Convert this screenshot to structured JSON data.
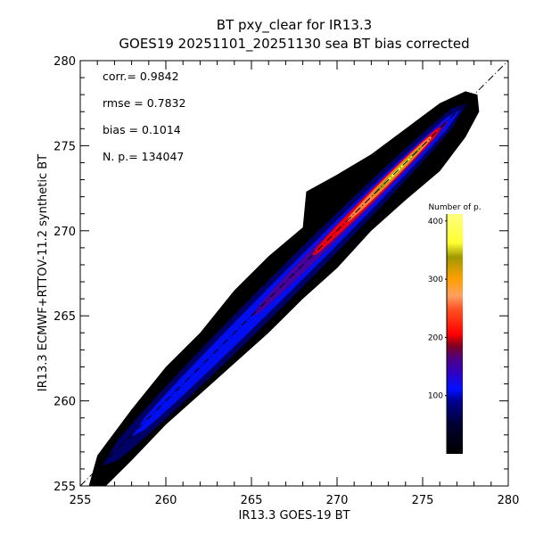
{
  "chart_data": {
    "type": "heatmap",
    "title": "BT pxy_clear for IR13.3",
    "subtitle": "GOES19 20251101_20251130 sea BT bias corrected",
    "xlabel": "IR13.3 GOES-19 BT",
    "ylabel": "IR13.3 ECMWF+RTTOV-11.2 synthetic BT",
    "xlim": [
      255,
      280
    ],
    "ylim": [
      255,
      280
    ],
    "xticks": [
      "255",
      "260",
      "265",
      "270",
      "275",
      "280"
    ],
    "yticks": [
      "255",
      "260",
      "265",
      "270",
      "275",
      "280"
    ],
    "stats": {
      "corr": "corr.= 0.9842",
      "rmse": "rmse = 0.7832",
      "bias": "bias = 0.1014",
      "np": "N. p.=  134047"
    },
    "identity_line": [
      [
        255,
        255
      ],
      [
        280,
        280
      ]
    ],
    "colorbar": {
      "title": "Number of p.",
      "range": [
        0,
        412
      ],
      "ticks": [
        "100",
        "200",
        "300",
        "400"
      ],
      "tick_values": [
        100,
        200,
        300,
        400
      ],
      "stops": [
        [
          0,
          "#000000"
        ],
        [
          0.12,
          "#000030"
        ],
        [
          0.22,
          "#000090"
        ],
        [
          0.27,
          "#0010ff"
        ],
        [
          0.34,
          "#3000c0"
        ],
        [
          0.4,
          "#500080"
        ],
        [
          0.45,
          "#800020"
        ],
        [
          0.5,
          "#ff0000"
        ],
        [
          0.6,
          "#ff5020"
        ],
        [
          0.66,
          "#ffa060"
        ],
        [
          0.73,
          "#ffa000"
        ],
        [
          0.82,
          "#a09800"
        ],
        [
          0.88,
          "#ffff30"
        ],
        [
          1,
          "#ffff80"
        ]
      ]
    },
    "envelope": [
      [
        255.5,
        255
      ],
      [
        256,
        256.8
      ],
      [
        258,
        259.5
      ],
      [
        260,
        262
      ],
      [
        262,
        264
      ],
      [
        264,
        266.5
      ],
      [
        266,
        268.5
      ],
      [
        268,
        270.2
      ],
      [
        268.2,
        272.3
      ],
      [
        270,
        273.3
      ],
      [
        272,
        274.5
      ],
      [
        274,
        276
      ],
      [
        276,
        277.5
      ],
      [
        277.5,
        278.2
      ],
      [
        278.2,
        278
      ],
      [
        278.3,
        277
      ],
      [
        277.5,
        275.5
      ],
      [
        276,
        273.5
      ],
      [
        274,
        271.8
      ],
      [
        272,
        270
      ],
      [
        270,
        267.8
      ],
      [
        268,
        266
      ],
      [
        266,
        264
      ],
      [
        264,
        262.2
      ],
      [
        262,
        260.4
      ],
      [
        260,
        258.6
      ],
      [
        258,
        256.5
      ],
      [
        256.5,
        255
      ]
    ],
    "density_levels": [
      {
        "count": 40,
        "color": "#000070",
        "x_range": [
          256.3,
          277.6
        ],
        "half_width": 1.2,
        "offset": -0.1
      },
      {
        "count": 90,
        "color": "#0010ff",
        "x_range": [
          258,
          277.2
        ],
        "half_width": 0.75,
        "offset": -0.1
      },
      {
        "count": 150,
        "color": "#500090",
        "x_range": [
          265,
          276.6
        ],
        "half_width": 0.5,
        "offset": -0.05
      },
      {
        "count": 200,
        "color": "#ff0000",
        "x_range": [
          268.5,
          276.1
        ],
        "half_width": 0.38,
        "offset": 0
      },
      {
        "count": 280,
        "color": "#ff9040",
        "x_range": [
          270.5,
          275.6
        ],
        "half_width": 0.27,
        "offset": 0
      },
      {
        "count": 340,
        "color": "#a09800",
        "x_range": [
          272,
          275
        ],
        "half_width": 0.17,
        "offset": 0
      },
      {
        "count": 390,
        "color": "#ffff40",
        "x_range": [
          272.7,
          274.4
        ],
        "half_width": 0.1,
        "offset": 0
      }
    ]
  }
}
